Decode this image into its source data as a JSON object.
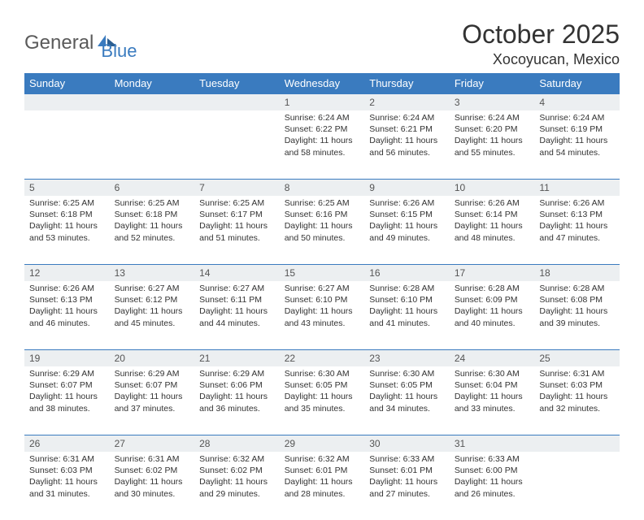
{
  "logo": {
    "part1": "General",
    "part2": "Blue"
  },
  "title": "October 2025",
  "location": "Xocoyucan, Mexico",
  "colors": {
    "header_bg": "#3a7bbf",
    "header_text": "#ffffff",
    "daynum_bg": "#eceff1",
    "border": "#3a7bbf",
    "title_color": "#333333"
  },
  "day_headers": [
    "Sunday",
    "Monday",
    "Tuesday",
    "Wednesday",
    "Thursday",
    "Friday",
    "Saturday"
  ],
  "weeks": [
    [
      {
        "n": "",
        "sr": "",
        "ss": "",
        "dl": ""
      },
      {
        "n": "",
        "sr": "",
        "ss": "",
        "dl": ""
      },
      {
        "n": "",
        "sr": "",
        "ss": "",
        "dl": ""
      },
      {
        "n": "1",
        "sr": "Sunrise: 6:24 AM",
        "ss": "Sunset: 6:22 PM",
        "dl": "Daylight: 11 hours and 58 minutes."
      },
      {
        "n": "2",
        "sr": "Sunrise: 6:24 AM",
        "ss": "Sunset: 6:21 PM",
        "dl": "Daylight: 11 hours and 56 minutes."
      },
      {
        "n": "3",
        "sr": "Sunrise: 6:24 AM",
        "ss": "Sunset: 6:20 PM",
        "dl": "Daylight: 11 hours and 55 minutes."
      },
      {
        "n": "4",
        "sr": "Sunrise: 6:24 AM",
        "ss": "Sunset: 6:19 PM",
        "dl": "Daylight: 11 hours and 54 minutes."
      }
    ],
    [
      {
        "n": "5",
        "sr": "Sunrise: 6:25 AM",
        "ss": "Sunset: 6:18 PM",
        "dl": "Daylight: 11 hours and 53 minutes."
      },
      {
        "n": "6",
        "sr": "Sunrise: 6:25 AM",
        "ss": "Sunset: 6:18 PM",
        "dl": "Daylight: 11 hours and 52 minutes."
      },
      {
        "n": "7",
        "sr": "Sunrise: 6:25 AM",
        "ss": "Sunset: 6:17 PM",
        "dl": "Daylight: 11 hours and 51 minutes."
      },
      {
        "n": "8",
        "sr": "Sunrise: 6:25 AM",
        "ss": "Sunset: 6:16 PM",
        "dl": "Daylight: 11 hours and 50 minutes."
      },
      {
        "n": "9",
        "sr": "Sunrise: 6:26 AM",
        "ss": "Sunset: 6:15 PM",
        "dl": "Daylight: 11 hours and 49 minutes."
      },
      {
        "n": "10",
        "sr": "Sunrise: 6:26 AM",
        "ss": "Sunset: 6:14 PM",
        "dl": "Daylight: 11 hours and 48 minutes."
      },
      {
        "n": "11",
        "sr": "Sunrise: 6:26 AM",
        "ss": "Sunset: 6:13 PM",
        "dl": "Daylight: 11 hours and 47 minutes."
      }
    ],
    [
      {
        "n": "12",
        "sr": "Sunrise: 6:26 AM",
        "ss": "Sunset: 6:13 PM",
        "dl": "Daylight: 11 hours and 46 minutes."
      },
      {
        "n": "13",
        "sr": "Sunrise: 6:27 AM",
        "ss": "Sunset: 6:12 PM",
        "dl": "Daylight: 11 hours and 45 minutes."
      },
      {
        "n": "14",
        "sr": "Sunrise: 6:27 AM",
        "ss": "Sunset: 6:11 PM",
        "dl": "Daylight: 11 hours and 44 minutes."
      },
      {
        "n": "15",
        "sr": "Sunrise: 6:27 AM",
        "ss": "Sunset: 6:10 PM",
        "dl": "Daylight: 11 hours and 43 minutes."
      },
      {
        "n": "16",
        "sr": "Sunrise: 6:28 AM",
        "ss": "Sunset: 6:10 PM",
        "dl": "Daylight: 11 hours and 41 minutes."
      },
      {
        "n": "17",
        "sr": "Sunrise: 6:28 AM",
        "ss": "Sunset: 6:09 PM",
        "dl": "Daylight: 11 hours and 40 minutes."
      },
      {
        "n": "18",
        "sr": "Sunrise: 6:28 AM",
        "ss": "Sunset: 6:08 PM",
        "dl": "Daylight: 11 hours and 39 minutes."
      }
    ],
    [
      {
        "n": "19",
        "sr": "Sunrise: 6:29 AM",
        "ss": "Sunset: 6:07 PM",
        "dl": "Daylight: 11 hours and 38 minutes."
      },
      {
        "n": "20",
        "sr": "Sunrise: 6:29 AM",
        "ss": "Sunset: 6:07 PM",
        "dl": "Daylight: 11 hours and 37 minutes."
      },
      {
        "n": "21",
        "sr": "Sunrise: 6:29 AM",
        "ss": "Sunset: 6:06 PM",
        "dl": "Daylight: 11 hours and 36 minutes."
      },
      {
        "n": "22",
        "sr": "Sunrise: 6:30 AM",
        "ss": "Sunset: 6:05 PM",
        "dl": "Daylight: 11 hours and 35 minutes."
      },
      {
        "n": "23",
        "sr": "Sunrise: 6:30 AM",
        "ss": "Sunset: 6:05 PM",
        "dl": "Daylight: 11 hours and 34 minutes."
      },
      {
        "n": "24",
        "sr": "Sunrise: 6:30 AM",
        "ss": "Sunset: 6:04 PM",
        "dl": "Daylight: 11 hours and 33 minutes."
      },
      {
        "n": "25",
        "sr": "Sunrise: 6:31 AM",
        "ss": "Sunset: 6:03 PM",
        "dl": "Daylight: 11 hours and 32 minutes."
      }
    ],
    [
      {
        "n": "26",
        "sr": "Sunrise: 6:31 AM",
        "ss": "Sunset: 6:03 PM",
        "dl": "Daylight: 11 hours and 31 minutes."
      },
      {
        "n": "27",
        "sr": "Sunrise: 6:31 AM",
        "ss": "Sunset: 6:02 PM",
        "dl": "Daylight: 11 hours and 30 minutes."
      },
      {
        "n": "28",
        "sr": "Sunrise: 6:32 AM",
        "ss": "Sunset: 6:02 PM",
        "dl": "Daylight: 11 hours and 29 minutes."
      },
      {
        "n": "29",
        "sr": "Sunrise: 6:32 AM",
        "ss": "Sunset: 6:01 PM",
        "dl": "Daylight: 11 hours and 28 minutes."
      },
      {
        "n": "30",
        "sr": "Sunrise: 6:33 AM",
        "ss": "Sunset: 6:01 PM",
        "dl": "Daylight: 11 hours and 27 minutes."
      },
      {
        "n": "31",
        "sr": "Sunrise: 6:33 AM",
        "ss": "Sunset: 6:00 PM",
        "dl": "Daylight: 11 hours and 26 minutes."
      },
      {
        "n": "",
        "sr": "",
        "ss": "",
        "dl": ""
      }
    ]
  ]
}
